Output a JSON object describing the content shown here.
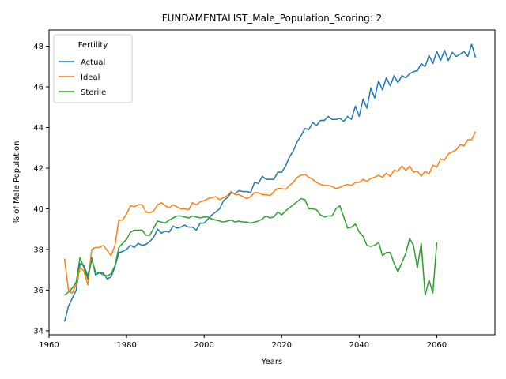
{
  "chart_data": {
    "type": "line",
    "title": "FUNDAMENTALIST_Male_Population_Scoring: 2",
    "xlabel": "Years",
    "ylabel": "% of Male Population",
    "xlim": [
      1960,
      2075
    ],
    "ylim": [
      33.8,
      48.8
    ],
    "x_ticks": [
      1960,
      1980,
      2000,
      2020,
      2040,
      2060
    ],
    "y_ticks": [
      34,
      36,
      38,
      40,
      42,
      44,
      46,
      48
    ],
    "grid": false,
    "legend": {
      "title": "Fertility",
      "position": "top-left"
    },
    "series": [
      {
        "name": "Actual",
        "color": "#1f77b4",
        "points": [
          [
            1964,
            34.45
          ],
          [
            1965,
            35.2
          ],
          [
            1966,
            35.6
          ],
          [
            1967,
            36.0
          ],
          [
            1968,
            37.3
          ],
          [
            1969,
            37.2
          ],
          [
            1970,
            36.7
          ],
          [
            1971,
            37.6
          ],
          [
            1972,
            36.75
          ],
          [
            1973,
            36.85
          ],
          [
            1974,
            36.85
          ],
          [
            1975,
            36.55
          ],
          [
            1976,
            36.65
          ],
          [
            1977,
            37.15
          ],
          [
            1978,
            37.85
          ],
          [
            1979,
            37.9
          ],
          [
            1980,
            38.0
          ],
          [
            1981,
            38.2
          ],
          [
            1982,
            38.1
          ],
          [
            1983,
            38.3
          ],
          [
            1984,
            38.2
          ],
          [
            1985,
            38.25
          ],
          [
            1986,
            38.4
          ],
          [
            1987,
            38.6
          ],
          [
            1988,
            39.0
          ],
          [
            1989,
            38.8
          ],
          [
            1990,
            38.9
          ],
          [
            1991,
            38.85
          ],
          [
            1992,
            39.15
          ],
          [
            1993,
            39.05
          ],
          [
            1994,
            39.1
          ],
          [
            1995,
            39.2
          ],
          [
            1996,
            39.1
          ],
          [
            1997,
            39.1
          ],
          [
            1998,
            38.95
          ],
          [
            1999,
            39.3
          ],
          [
            2000,
            39.3
          ],
          [
            2001,
            39.5
          ],
          [
            2002,
            39.7
          ],
          [
            2003,
            39.85
          ],
          [
            2004,
            40.0
          ],
          [
            2005,
            40.4
          ],
          [
            2006,
            40.55
          ],
          [
            2007,
            40.8
          ],
          [
            2008,
            40.75
          ],
          [
            2009,
            40.9
          ],
          [
            2010,
            40.85
          ],
          [
            2011,
            40.85
          ],
          [
            2012,
            40.8
          ],
          [
            2013,
            41.3
          ],
          [
            2014,
            41.25
          ],
          [
            2015,
            41.6
          ],
          [
            2016,
            41.45
          ],
          [
            2017,
            41.45
          ],
          [
            2018,
            41.45
          ],
          [
            2019,
            41.8
          ],
          [
            2020,
            41.8
          ],
          [
            2021,
            42.1
          ],
          [
            2022,
            42.55
          ],
          [
            2023,
            42.85
          ],
          [
            2024,
            43.3
          ],
          [
            2025,
            43.6
          ],
          [
            2026,
            43.95
          ],
          [
            2027,
            43.9
          ],
          [
            2028,
            44.25
          ],
          [
            2029,
            44.1
          ],
          [
            2030,
            44.35
          ],
          [
            2031,
            44.35
          ],
          [
            2032,
            44.55
          ],
          [
            2033,
            44.4
          ],
          [
            2034,
            44.4
          ],
          [
            2035,
            44.45
          ],
          [
            2036,
            44.3
          ],
          [
            2037,
            44.55
          ],
          [
            2038,
            44.4
          ],
          [
            2039,
            45.05
          ],
          [
            2040,
            44.55
          ],
          [
            2041,
            45.4
          ],
          [
            2042,
            44.95
          ],
          [
            2043,
            45.95
          ],
          [
            2044,
            45.45
          ],
          [
            2045,
            46.3
          ],
          [
            2046,
            45.85
          ],
          [
            2047,
            46.45
          ],
          [
            2048,
            46.05
          ],
          [
            2049,
            46.55
          ],
          [
            2050,
            46.2
          ],
          [
            2051,
            46.55
          ],
          [
            2052,
            46.45
          ],
          [
            2053,
            46.65
          ],
          [
            2054,
            46.75
          ],
          [
            2055,
            46.8
          ],
          [
            2056,
            47.15
          ],
          [
            2057,
            47.0
          ],
          [
            2058,
            47.55
          ],
          [
            2059,
            47.15
          ],
          [
            2060,
            47.75
          ],
          [
            2061,
            47.3
          ],
          [
            2062,
            47.8
          ],
          [
            2063,
            47.3
          ],
          [
            2064,
            47.7
          ],
          [
            2065,
            47.5
          ],
          [
            2066,
            47.6
          ],
          [
            2067,
            47.75
          ],
          [
            2068,
            47.5
          ],
          [
            2069,
            48.1
          ],
          [
            2070,
            47.45
          ]
        ]
      },
      {
        "name": "Ideal",
        "color": "#ff7f0e",
        "points": [
          [
            1964,
            37.55
          ],
          [
            1965,
            36.0
          ],
          [
            1966,
            35.85
          ],
          [
            1967,
            36.3
          ],
          [
            1968,
            37.1
          ],
          [
            1969,
            36.95
          ],
          [
            1970,
            36.25
          ],
          [
            1971,
            38.0
          ],
          [
            1972,
            38.1
          ],
          [
            1973,
            38.1
          ],
          [
            1974,
            38.2
          ],
          [
            1975,
            37.95
          ],
          [
            1976,
            37.7
          ],
          [
            1977,
            38.2
          ],
          [
            1978,
            39.45
          ],
          [
            1979,
            39.45
          ],
          [
            1980,
            39.75
          ],
          [
            1981,
            40.15
          ],
          [
            1982,
            40.1
          ],
          [
            1983,
            40.2
          ],
          [
            1984,
            40.2
          ],
          [
            1985,
            39.85
          ],
          [
            1986,
            39.8
          ],
          [
            1987,
            39.9
          ],
          [
            1988,
            40.2
          ],
          [
            1989,
            40.3
          ],
          [
            1990,
            40.15
          ],
          [
            1991,
            40.05
          ],
          [
            1992,
            40.2
          ],
          [
            1993,
            40.1
          ],
          [
            1994,
            40.0
          ],
          [
            1995,
            40.0
          ],
          [
            1996,
            39.95
          ],
          [
            1997,
            40.3
          ],
          [
            1998,
            40.2
          ],
          [
            1999,
            40.35
          ],
          [
            2000,
            40.4
          ],
          [
            2001,
            40.5
          ],
          [
            2002,
            40.55
          ],
          [
            2003,
            40.6
          ],
          [
            2004,
            40.45
          ],
          [
            2005,
            40.55
          ],
          [
            2006,
            40.65
          ],
          [
            2007,
            40.85
          ],
          [
            2008,
            40.7
          ],
          [
            2009,
            40.7
          ],
          [
            2010,
            40.6
          ],
          [
            2011,
            40.5
          ],
          [
            2012,
            40.6
          ],
          [
            2013,
            40.8
          ],
          [
            2014,
            40.8
          ],
          [
            2015,
            40.7
          ],
          [
            2016,
            40.7
          ],
          [
            2017,
            40.65
          ],
          [
            2018,
            40.85
          ],
          [
            2019,
            41.0
          ],
          [
            2020,
            41.0
          ],
          [
            2021,
            40.95
          ],
          [
            2022,
            41.15
          ],
          [
            2023,
            41.3
          ],
          [
            2024,
            41.55
          ],
          [
            2025,
            41.65
          ],
          [
            2026,
            41.7
          ],
          [
            2027,
            41.55
          ],
          [
            2028,
            41.45
          ],
          [
            2029,
            41.3
          ],
          [
            2030,
            41.2
          ],
          [
            2031,
            41.15
          ],
          [
            2032,
            41.15
          ],
          [
            2033,
            41.1
          ],
          [
            2034,
            41.0
          ],
          [
            2035,
            41.05
          ],
          [
            2036,
            41.15
          ],
          [
            2037,
            41.2
          ],
          [
            2038,
            41.15
          ],
          [
            2039,
            41.3
          ],
          [
            2040,
            41.3
          ],
          [
            2041,
            41.45
          ],
          [
            2042,
            41.35
          ],
          [
            2043,
            41.5
          ],
          [
            2044,
            41.55
          ],
          [
            2045,
            41.65
          ],
          [
            2046,
            41.55
          ],
          [
            2047,
            41.75
          ],
          [
            2048,
            41.6
          ],
          [
            2049,
            41.9
          ],
          [
            2050,
            41.85
          ],
          [
            2051,
            42.1
          ],
          [
            2052,
            41.9
          ],
          [
            2053,
            42.1
          ],
          [
            2054,
            41.8
          ],
          [
            2055,
            41.85
          ],
          [
            2056,
            41.6
          ],
          [
            2057,
            41.85
          ],
          [
            2058,
            41.7
          ],
          [
            2059,
            42.15
          ],
          [
            2060,
            42.05
          ],
          [
            2061,
            42.45
          ],
          [
            2062,
            42.4
          ],
          [
            2063,
            42.7
          ],
          [
            2064,
            42.8
          ],
          [
            2065,
            42.9
          ],
          [
            2066,
            43.15
          ],
          [
            2067,
            43.1
          ],
          [
            2068,
            43.4
          ],
          [
            2069,
            43.4
          ],
          [
            2070,
            43.8
          ]
        ]
      },
      {
        "name": "Sterile",
        "color": "#2ca02c",
        "points": [
          [
            1964,
            35.75
          ],
          [
            1965,
            35.9
          ],
          [
            1966,
            36.1
          ],
          [
            1967,
            36.4
          ],
          [
            1968,
            37.6
          ],
          [
            1969,
            37.1
          ],
          [
            1970,
            36.55
          ],
          [
            1971,
            37.5
          ],
          [
            1972,
            36.9
          ],
          [
            1973,
            36.85
          ],
          [
            1974,
            36.75
          ],
          [
            1975,
            36.7
          ],
          [
            1976,
            36.8
          ],
          [
            1977,
            37.2
          ],
          [
            1978,
            38.1
          ],
          [
            1979,
            38.3
          ],
          [
            1980,
            38.5
          ],
          [
            1981,
            38.85
          ],
          [
            1982,
            38.95
          ],
          [
            1983,
            38.95
          ],
          [
            1984,
            38.95
          ],
          [
            1985,
            38.7
          ],
          [
            1986,
            38.7
          ],
          [
            1987,
            39.05
          ],
          [
            1988,
            39.4
          ],
          [
            1989,
            39.35
          ],
          [
            1990,
            39.3
          ],
          [
            1991,
            39.45
          ],
          [
            1992,
            39.55
          ],
          [
            1993,
            39.65
          ],
          [
            1994,
            39.65
          ],
          [
            1995,
            39.6
          ],
          [
            1996,
            39.55
          ],
          [
            1997,
            39.65
          ],
          [
            1998,
            39.6
          ],
          [
            1999,
            39.55
          ],
          [
            2000,
            39.6
          ],
          [
            2001,
            39.6
          ],
          [
            2002,
            39.5
          ],
          [
            2003,
            39.45
          ],
          [
            2004,
            39.4
          ],
          [
            2005,
            39.35
          ],
          [
            2006,
            39.4
          ],
          [
            2007,
            39.45
          ],
          [
            2008,
            39.35
          ],
          [
            2009,
            39.4
          ],
          [
            2010,
            39.35
          ],
          [
            2011,
            39.35
          ],
          [
            2012,
            39.3
          ],
          [
            2013,
            39.35
          ],
          [
            2014,
            39.4
          ],
          [
            2015,
            39.5
          ],
          [
            2016,
            39.65
          ],
          [
            2017,
            39.55
          ],
          [
            2018,
            39.6
          ],
          [
            2019,
            39.85
          ],
          [
            2020,
            39.7
          ],
          [
            2021,
            39.9
          ],
          [
            2022,
            40.05
          ],
          [
            2023,
            40.2
          ],
          [
            2024,
            40.35
          ],
          [
            2025,
            40.5
          ],
          [
            2026,
            40.45
          ],
          [
            2027,
            40.0
          ],
          [
            2028,
            40.0
          ],
          [
            2029,
            39.95
          ],
          [
            2030,
            39.7
          ],
          [
            2031,
            39.6
          ],
          [
            2032,
            39.65
          ],
          [
            2033,
            39.65
          ],
          [
            2034,
            40.0
          ],
          [
            2035,
            40.15
          ],
          [
            2036,
            39.6
          ],
          [
            2037,
            39.05
          ],
          [
            2038,
            39.1
          ],
          [
            2039,
            39.25
          ],
          [
            2040,
            38.85
          ],
          [
            2041,
            38.65
          ],
          [
            2042,
            38.2
          ],
          [
            2043,
            38.15
          ],
          [
            2044,
            38.2
          ],
          [
            2045,
            38.35
          ],
          [
            2046,
            37.7
          ],
          [
            2047,
            37.85
          ],
          [
            2048,
            37.85
          ],
          [
            2049,
            37.3
          ],
          [
            2050,
            36.9
          ],
          [
            2051,
            37.35
          ],
          [
            2052,
            37.8
          ],
          [
            2053,
            38.55
          ],
          [
            2054,
            38.2
          ],
          [
            2055,
            37.1
          ],
          [
            2056,
            38.3
          ],
          [
            2057,
            35.75
          ],
          [
            2058,
            36.5
          ],
          [
            2059,
            35.85
          ],
          [
            2060,
            38.35
          ]
        ]
      }
    ]
  }
}
